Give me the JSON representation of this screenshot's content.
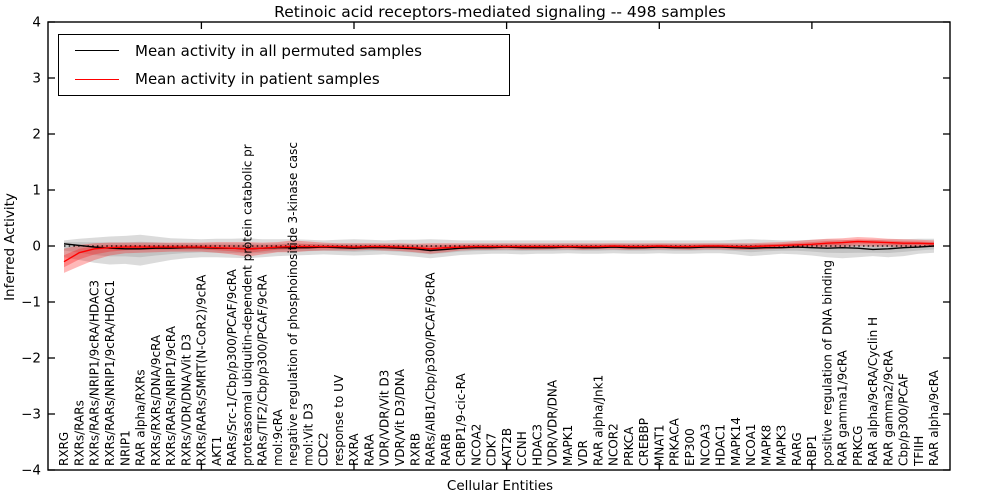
{
  "title": "Retinoic acid receptors-mediated signaling -- 498 samples",
  "legend": {
    "permuted_label": "Mean activity in all permuted samples",
    "patient_label": "Mean activity in patient samples"
  },
  "colors": {
    "permuted_line": "#000000",
    "patient_line": "#ff0000",
    "permuted_band": "#999999",
    "patient_band": "#ff0000",
    "zero_line": "#000000"
  },
  "chart_data": {
    "type": "line",
    "title": "Retinoic acid receptors-mediated signaling -- 498 samples",
    "xlabel": "Cellular Entities",
    "ylabel": "Inferred Activity",
    "ylim": [
      -4,
      4
    ],
    "grid": false,
    "legend_position": "upper-left",
    "y_tick_labels": [
      "4",
      "3",
      "2",
      "1",
      "0",
      "−1",
      "−2",
      "−3",
      "−4"
    ],
    "y_tick_values": [
      4,
      3,
      2,
      1,
      0,
      -1,
      -2,
      -3,
      -4
    ],
    "x_tick_values": [
      10,
      20,
      30,
      40,
      50
    ],
    "zero_line": 0,
    "categories": [
      "RXRG",
      "RXRs/RARs",
      "RXRs/RARs/NRIP1/9cRA/HDAC3",
      "RXRs/RARs/NRIP1/9cRA/HDAC1",
      "NRIP1",
      "RAR alpha/RXRs",
      "RXRs/RXRs/DNA/9cRA",
      "RXRs/RARs/NRIP1/9cRA",
      "RXRs/VDR/DNA/Vit D3",
      "RXRs/RARs/SMRT(N-CoR2)/9cRA",
      "AKT1",
      "RARs/Src-1/Cbp/p300/PCAF/9cRA",
      "proteasomal ubiquitin-dependent protein catabolic pr",
      "RARs/TIF2/Cbp/p300/PCAF/9cRA",
      "mol:9cRA",
      "negative regulation of phosphoinositide 3-kinase casc",
      "mol:Vit D3",
      "CDC2",
      "response to UV",
      "RXRA",
      "RARA",
      "VDR/VDR/Vit D3",
      "VDR/Vit D3/DNA",
      "RXRB",
      "RARs/AIB1/Cbp/p300/PCAF/9cRA",
      "RARB",
      "CRBP1/9-cic-RA",
      "NCOA2",
      "CDK7",
      "KAT2B",
      "CCNH",
      "HDAC3",
      "VDR/VDR/DNA",
      "MAPK1",
      "VDR",
      "RAR alpha/Jnk1",
      "NCOR2",
      "PRKCA",
      "CREBBP",
      "MNAT1",
      "PRKACA",
      "EP300",
      "NCOA3",
      "HDAC1",
      "MAPK14",
      "NCOA1",
      "MAPK8",
      "MAPK3",
      "RARG",
      "RBP1",
      "positive regulation of DNA binding",
      "RAR gamma1/9cRA",
      "PRKCG",
      "RAR alpha/9cRA/Cyclin H",
      "RAR gamma2/9cRA",
      "Cbp/p300/PCAF",
      "TFIIH",
      "RAR alpha/9cRA"
    ],
    "series": [
      {
        "name": "Mean activity in all permuted samples",
        "color": "#000000",
        "values": [
          0.04,
          0.01,
          -0.02,
          -0.04,
          -0.05,
          -0.05,
          -0.04,
          -0.04,
          -0.03,
          -0.03,
          -0.04,
          -0.04,
          -0.05,
          -0.04,
          -0.03,
          -0.03,
          -0.03,
          -0.02,
          -0.03,
          -0.04,
          -0.03,
          -0.03,
          -0.04,
          -0.05,
          -0.08,
          -0.06,
          -0.04,
          -0.03,
          -0.03,
          -0.02,
          -0.03,
          -0.03,
          -0.03,
          -0.02,
          -0.03,
          -0.03,
          -0.02,
          -0.03,
          -0.03,
          -0.02,
          -0.03,
          -0.03,
          -0.02,
          -0.02,
          -0.03,
          -0.04,
          -0.03,
          -0.03,
          -0.02,
          -0.03,
          -0.04,
          -0.03,
          -0.04,
          -0.06,
          -0.05,
          -0.03,
          -0.02,
          0.0
        ]
      },
      {
        "name": "Mean activity in patient samples",
        "color": "#ff0000",
        "values": [
          -0.28,
          -0.12,
          -0.05,
          -0.03,
          -0.02,
          -0.02,
          -0.02,
          -0.02,
          -0.02,
          -0.02,
          -0.03,
          -0.04,
          -0.05,
          -0.04,
          -0.02,
          -0.01,
          -0.01,
          -0.01,
          -0.01,
          -0.02,
          -0.01,
          -0.01,
          -0.02,
          -0.03,
          -0.05,
          -0.03,
          -0.02,
          -0.01,
          -0.01,
          -0.01,
          -0.01,
          -0.01,
          -0.01,
          -0.01,
          -0.01,
          -0.01,
          0.0,
          -0.01,
          -0.01,
          0.0,
          -0.01,
          -0.01,
          0.0,
          0.0,
          -0.01,
          -0.01,
          0.0,
          0.01,
          0.02,
          0.03,
          0.05,
          0.06,
          0.08,
          0.07,
          0.06,
          0.05,
          0.05,
          0.04
        ]
      }
    ],
    "bands": [
      {
        "name": "permuted-range",
        "color": "#999999",
        "opacity": 0.35,
        "upper": [
          0.1,
          0.13,
          0.15,
          0.17,
          0.18,
          0.2,
          0.17,
          0.14,
          0.13,
          0.12,
          0.13,
          0.13,
          0.14,
          0.12,
          0.12,
          0.12,
          0.11,
          0.1,
          0.11,
          0.12,
          0.11,
          0.1,
          0.11,
          0.11,
          0.12,
          0.11,
          0.1,
          0.1,
          0.1,
          0.1,
          0.1,
          0.1,
          0.1,
          0.1,
          0.1,
          0.1,
          0.1,
          0.1,
          0.1,
          0.1,
          0.1,
          0.1,
          0.1,
          0.1,
          0.11,
          0.12,
          0.11,
          0.1,
          0.1,
          0.11,
          0.12,
          0.11,
          0.1,
          0.11,
          0.12,
          0.12,
          0.13,
          0.13
        ],
        "lower": [
          -0.2,
          -0.25,
          -0.3,
          -0.33,
          -0.32,
          -0.35,
          -0.3,
          -0.25,
          -0.22,
          -0.2,
          -0.2,
          -0.21,
          -0.22,
          -0.2,
          -0.18,
          -0.17,
          -0.16,
          -0.15,
          -0.16,
          -0.17,
          -0.16,
          -0.15,
          -0.17,
          -0.19,
          -0.22,
          -0.19,
          -0.16,
          -0.15,
          -0.14,
          -0.14,
          -0.15,
          -0.14,
          -0.14,
          -0.13,
          -0.14,
          -0.14,
          -0.13,
          -0.14,
          -0.14,
          -0.13,
          -0.14,
          -0.14,
          -0.13,
          -0.13,
          -0.15,
          -0.18,
          -0.16,
          -0.14,
          -0.15,
          -0.17,
          -0.2,
          -0.22,
          -0.2,
          -0.18,
          -0.2,
          -0.18,
          -0.14,
          -0.12
        ]
      },
      {
        "name": "patient-range",
        "color": "#ff0000",
        "opacity": 0.28,
        "upper": [
          -0.05,
          0.02,
          0.05,
          0.06,
          0.06,
          0.06,
          0.06,
          0.06,
          0.06,
          0.06,
          0.07,
          0.07,
          0.07,
          0.06,
          0.07,
          0.1,
          0.08,
          0.06,
          0.05,
          0.05,
          0.05,
          0.05,
          0.05,
          0.04,
          0.05,
          0.05,
          0.05,
          0.05,
          0.05,
          0.05,
          0.05,
          0.05,
          0.05,
          0.05,
          0.05,
          0.05,
          0.05,
          0.05,
          0.05,
          0.05,
          0.05,
          0.05,
          0.05,
          0.05,
          0.05,
          0.05,
          0.06,
          0.07,
          0.09,
          0.11,
          0.13,
          0.14,
          0.16,
          0.15,
          0.13,
          0.12,
          0.11,
          0.1
        ],
        "lower": [
          -0.48,
          -0.36,
          -0.25,
          -0.17,
          -0.13,
          -0.12,
          -0.11,
          -0.1,
          -0.1,
          -0.1,
          -0.12,
          -0.15,
          -0.19,
          -0.15,
          -0.11,
          -0.11,
          -0.09,
          -0.08,
          -0.08,
          -0.08,
          -0.07,
          -0.08,
          -0.09,
          -0.11,
          -0.14,
          -0.11,
          -0.08,
          -0.07,
          -0.07,
          -0.06,
          -0.07,
          -0.07,
          -0.06,
          -0.06,
          -0.07,
          -0.06,
          -0.06,
          -0.07,
          -0.06,
          -0.06,
          -0.06,
          -0.07,
          -0.06,
          -0.06,
          -0.07,
          -0.07,
          -0.06,
          -0.05,
          -0.04,
          -0.03,
          -0.02,
          -0.02,
          0.0,
          -0.01,
          -0.01,
          -0.02,
          -0.02,
          -0.02
        ]
      }
    ]
  }
}
